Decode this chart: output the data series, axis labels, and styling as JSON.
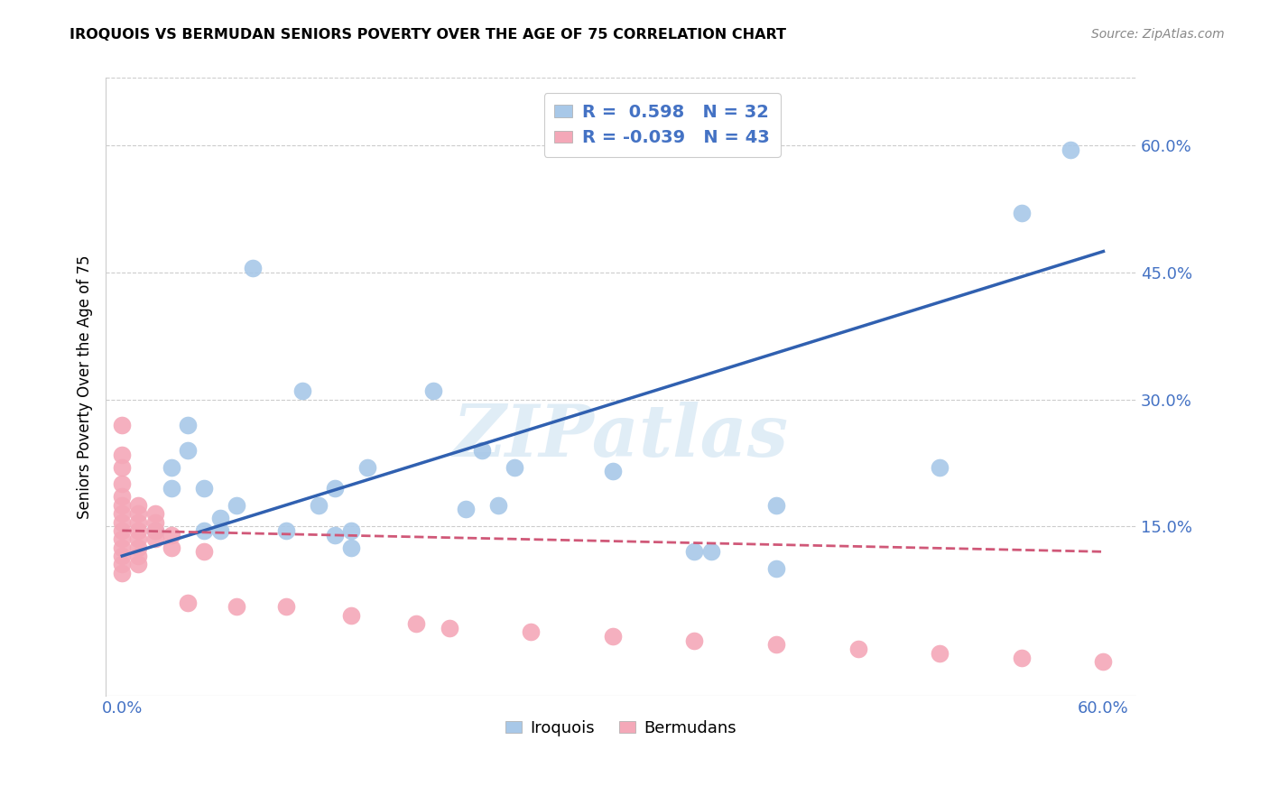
{
  "title": "IROQUOIS VS BERMUDAN SENIORS POVERTY OVER THE AGE OF 75 CORRELATION CHART",
  "source": "Source: ZipAtlas.com",
  "xlabel_color": "#4472C4",
  "ylabel": "Seniors Poverty Over the Age of 75",
  "xlim": [
    -0.01,
    0.62
  ],
  "ylim": [
    -0.05,
    0.68
  ],
  "ytick_labels_right": [
    "60.0%",
    "45.0%",
    "30.0%",
    "15.0%"
  ],
  "ytick_vals_right": [
    0.6,
    0.45,
    0.3,
    0.15
  ],
  "iroquois_color": "#a8c8e8",
  "bermudan_color": "#f4a8b8",
  "iroquois_line_color": "#3060b0",
  "bermudan_line_color": "#d05878",
  "R_iroquois": 0.598,
  "N_iroquois": 32,
  "R_bermudan": -0.039,
  "N_bermudan": 43,
  "watermark": "ZIPatlas",
  "iroquois_x": [
    0.02,
    0.03,
    0.03,
    0.04,
    0.04,
    0.05,
    0.05,
    0.06,
    0.06,
    0.07,
    0.08,
    0.1,
    0.11,
    0.12,
    0.13,
    0.13,
    0.14,
    0.14,
    0.15,
    0.19,
    0.21,
    0.22,
    0.23,
    0.24,
    0.3,
    0.35,
    0.36,
    0.4,
    0.4,
    0.5,
    0.55,
    0.58
  ],
  "iroquois_y": [
    0.145,
    0.195,
    0.22,
    0.24,
    0.27,
    0.195,
    0.145,
    0.145,
    0.16,
    0.175,
    0.455,
    0.145,
    0.31,
    0.175,
    0.195,
    0.14,
    0.145,
    0.125,
    0.22,
    0.31,
    0.17,
    0.24,
    0.175,
    0.22,
    0.215,
    0.12,
    0.12,
    0.1,
    0.175,
    0.22,
    0.52,
    0.595
  ],
  "bermudan_x": [
    0.0,
    0.0,
    0.0,
    0.0,
    0.0,
    0.0,
    0.0,
    0.0,
    0.0,
    0.0,
    0.0,
    0.0,
    0.0,
    0.0,
    0.01,
    0.01,
    0.01,
    0.01,
    0.01,
    0.01,
    0.01,
    0.01,
    0.02,
    0.02,
    0.02,
    0.02,
    0.03,
    0.03,
    0.04,
    0.05,
    0.07,
    0.1,
    0.14,
    0.18,
    0.2,
    0.25,
    0.3,
    0.35,
    0.4,
    0.45,
    0.5,
    0.55,
    0.6
  ],
  "bermudan_y": [
    0.27,
    0.235,
    0.22,
    0.2,
    0.185,
    0.175,
    0.165,
    0.155,
    0.145,
    0.135,
    0.125,
    0.115,
    0.105,
    0.095,
    0.175,
    0.165,
    0.155,
    0.145,
    0.135,
    0.125,
    0.115,
    0.105,
    0.165,
    0.155,
    0.145,
    0.135,
    0.14,
    0.125,
    0.06,
    0.12,
    0.055,
    0.055,
    0.045,
    0.035,
    0.03,
    0.025,
    0.02,
    0.015,
    0.01,
    0.005,
    0.0,
    -0.005,
    -0.01
  ],
  "iroquois_line_x": [
    0.0,
    0.6
  ],
  "iroquois_line_y": [
    0.115,
    0.475
  ],
  "bermudan_line_x": [
    0.0,
    0.6
  ],
  "bermudan_line_y": [
    0.145,
    0.12
  ]
}
